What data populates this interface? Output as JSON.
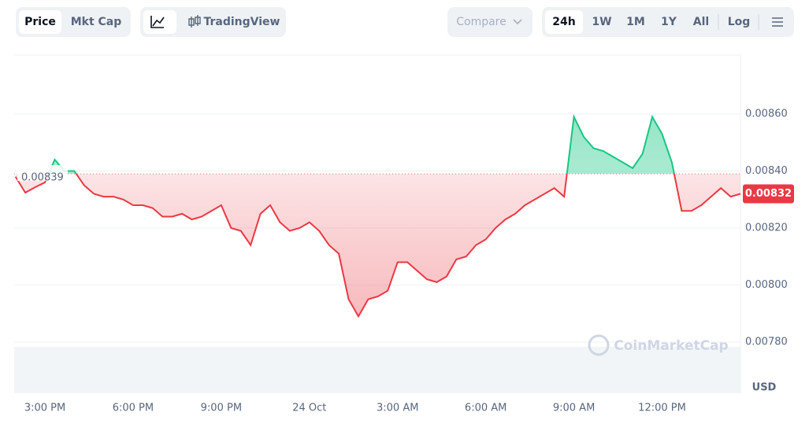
{
  "toolbar": {
    "metric_tabs": [
      "Price",
      "Mkt Cap"
    ],
    "chart_tabs": [
      "TradingView"
    ],
    "compare": "Compare",
    "ranges": [
      "24h",
      "1W",
      "1M",
      "1Y",
      "All"
    ],
    "log": "Log"
  },
  "chart_data": {
    "type": "line",
    "categories": [
      null,
      null,
      null,
      "3:00 PM",
      null,
      null,
      null,
      null,
      null,
      null,
      null,
      null,
      "6:00 PM",
      null,
      null,
      null,
      null,
      null,
      null,
      null,
      null,
      "9:00 PM",
      null,
      null,
      null,
      null,
      null,
      null,
      null,
      null,
      "24 Oct",
      null,
      null,
      null,
      null,
      null,
      null,
      null,
      null,
      "3:00 AM",
      null,
      null,
      null,
      null,
      null,
      null,
      null,
      null,
      "6:00 AM",
      null,
      null,
      null,
      null,
      null,
      null,
      null,
      null,
      "9:00 AM",
      null,
      null,
      null,
      null,
      null,
      null,
      null,
      null,
      "12:00 PM",
      null,
      null,
      null,
      null,
      null,
      null,
      null,
      null
    ],
    "series": [
      {
        "name": "Price",
        "values": [
          0.00838,
          0.008324,
          0.008343,
          0.00836,
          0.00844,
          0.0084,
          0.0084,
          0.00835,
          0.00832,
          0.00831,
          0.00831,
          0.0083,
          0.00828,
          0.00828,
          0.00827,
          0.00824,
          0.00824,
          0.00825,
          0.00823,
          0.00824,
          0.00826,
          0.00828,
          0.0082,
          0.00819,
          0.00814,
          0.00825,
          0.00828,
          0.00822,
          0.00819,
          0.0082,
          0.00822,
          0.00819,
          0.00814,
          0.00811,
          0.00795,
          0.00789,
          0.00795,
          0.00796,
          0.00798,
          0.00808,
          0.00808,
          0.00805,
          0.00802,
          0.00801,
          0.00803,
          0.00809,
          0.0081,
          0.00814,
          0.00816,
          0.0082,
          0.00823,
          0.00825,
          0.00828,
          0.0083,
          0.00832,
          0.00834,
          0.00831,
          0.00859,
          0.00852,
          0.00848,
          0.00847,
          0.00845,
          0.00843,
          0.00841,
          0.00846,
          0.00859,
          0.00853,
          0.00843,
          0.00826,
          0.00826,
          0.00828,
          0.00831,
          0.00834,
          0.00831,
          0.00832
        ]
      }
    ],
    "baseline": 0.00839,
    "current_value": 0.00832,
    "up_color": "#16c784",
    "down_color": "#ea3943",
    "ylim": [
      0.0078,
      0.0088
    ],
    "yticks": [
      {
        "value": 0.0078,
        "label": "0.00780"
      },
      {
        "value": 0.008,
        "label": "0.00800"
      },
      {
        "value": 0.0082,
        "label": "0.00820"
      },
      {
        "value": 0.0084,
        "label": "0.00840"
      },
      {
        "value": 0.0086,
        "label": "0.00860"
      }
    ],
    "grid": true,
    "y_unit": "USD",
    "watermark": "CoinMarketCap"
  }
}
